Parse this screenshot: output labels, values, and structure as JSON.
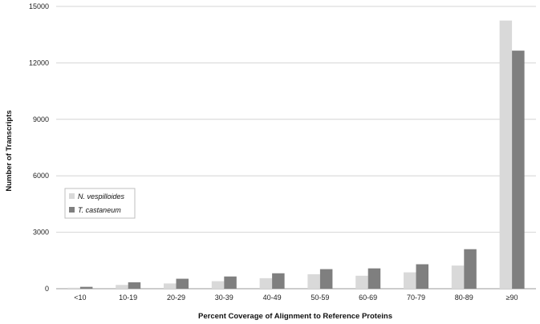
{
  "chart_data": {
    "type": "bar",
    "categories": [
      "<10",
      "10-19",
      "20-29",
      "30-39",
      "40-49",
      "50-59",
      "60-69",
      "70-79",
      "80-89",
      "≥90"
    ],
    "series": [
      {
        "name": "N. vespilloides",
        "color": "#d9d9d9",
        "values": [
          50,
          200,
          280,
          400,
          560,
          770,
          690,
          870,
          1230,
          14250
        ]
      },
      {
        "name": "T. castaneum",
        "color": "#7f7f7f",
        "values": [
          100,
          340,
          530,
          650,
          820,
          1040,
          1080,
          1300,
          2100,
          12650
        ]
      }
    ],
    "xlabel": "Percent Coverage of Alignment to Reference Proteins",
    "ylabel": "Number of Transcripts",
    "ylim": [
      0,
      15000
    ],
    "yticks": [
      0,
      3000,
      6000,
      9000,
      12000,
      15000
    ],
    "grid": true,
    "legend_position": "left"
  }
}
